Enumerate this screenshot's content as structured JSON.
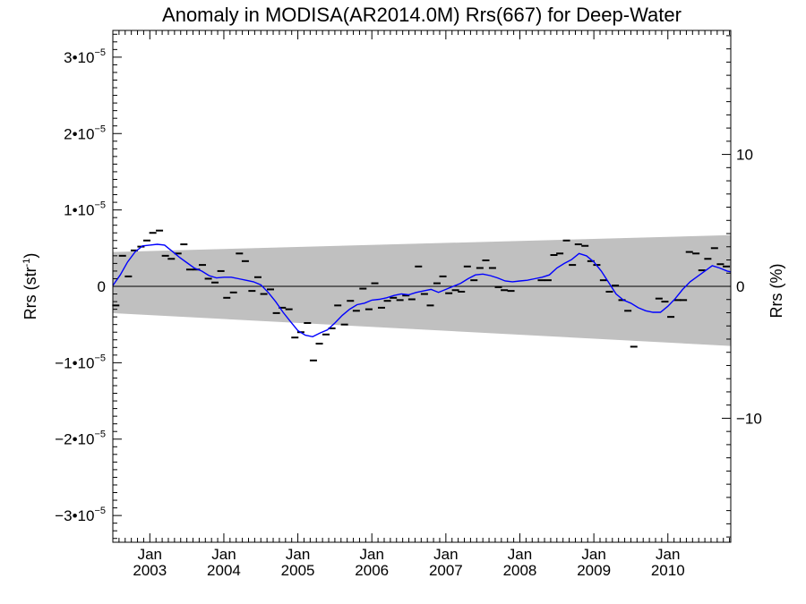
{
  "chart_data": {
    "type": "scatter",
    "title": "Anomaly in MODISA(AR2014.0M) Rrs(667) for Deep-Water",
    "ylabel_left": "Rrs (str",
    "ylabel_left_sup": "-1",
    "ylabel_left_close": ")",
    "ylabel_right": "Rrs (%)",
    "xlim": [
      2002.5,
      2010.85
    ],
    "ylim": [
      -3.35e-05,
      3.35e-05
    ],
    "ylim_right": [
      -19.4,
      19.4
    ],
    "y_ticks": [
      {
        "v": 3e-05,
        "m": "3•10",
        "e": "−5"
      },
      {
        "v": 2e-05,
        "m": "2•10",
        "e": "−5"
      },
      {
        "v": 1e-05,
        "m": "1•10",
        "e": "−5"
      },
      {
        "v": 0,
        "m": "0",
        "e": ""
      },
      {
        "v": -1e-05,
        "m": "−1•10",
        "e": "−5"
      },
      {
        "v": -2e-05,
        "m": "−2•10",
        "e": "−5"
      },
      {
        "v": -3e-05,
        "m": "−3•10",
        "e": "−5"
      }
    ],
    "y_right_ticks": [
      {
        "v": 10,
        "label": "10"
      },
      {
        "v": 0,
        "label": "0"
      },
      {
        "v": -10,
        "label": "−10"
      }
    ],
    "x_ticks": [
      {
        "v": 2003,
        "top": "Jan",
        "bottom": "2003"
      },
      {
        "v": 2004,
        "top": "Jan",
        "bottom": "2004"
      },
      {
        "v": 2005,
        "top": "Jan",
        "bottom": "2005"
      },
      {
        "v": 2006,
        "top": "Jan",
        "bottom": "2006"
      },
      {
        "v": 2007,
        "top": "Jan",
        "bottom": "2007"
      },
      {
        "v": 2008,
        "top": "Jan",
        "bottom": "2008"
      },
      {
        "v": 2009,
        "top": "Jan",
        "bottom": "2009"
      },
      {
        "v": 2010,
        "top": "Jan",
        "bottom": "2010"
      }
    ],
    "band": {
      "x": [
        2002.5,
        2010.85
      ],
      "upper": [
        4.5e-06,
        6.7e-06
      ],
      "lower": [
        -3.5e-06,
        -7.8e-06
      ],
      "color": "#c0c0c0"
    },
    "monthly_points": {
      "color": "#000000",
      "x": [
        2002.54,
        2002.63,
        2002.71,
        2002.79,
        2002.88,
        2002.96,
        2003.04,
        2003.13,
        2003.21,
        2003.29,
        2003.38,
        2003.46,
        2003.54,
        2003.63,
        2003.71,
        2003.79,
        2003.88,
        2003.96,
        2004.04,
        2004.13,
        2004.21,
        2004.29,
        2004.38,
        2004.46,
        2004.54,
        2004.63,
        2004.71,
        2004.79,
        2004.88,
        2004.96,
        2005.04,
        2005.13,
        2005.21,
        2005.29,
        2005.38,
        2005.46,
        2005.54,
        2005.63,
        2005.71,
        2005.79,
        2005.88,
        2005.96,
        2006.04,
        2006.13,
        2006.21,
        2006.29,
        2006.38,
        2006.46,
        2006.54,
        2006.63,
        2006.71,
        2006.79,
        2006.88,
        2006.96,
        2007.04,
        2007.13,
        2007.21,
        2007.29,
        2007.38,
        2007.46,
        2007.54,
        2007.63,
        2007.71,
        2007.79,
        2007.88,
        2008.29,
        2008.38,
        2008.46,
        2008.54,
        2008.63,
        2008.71,
        2008.79,
        2008.88,
        2008.96,
        2009.04,
        2009.13,
        2009.21,
        2009.29,
        2009.38,
        2009.46,
        2009.54,
        2009.88,
        2009.96,
        2010.04,
        2010.13,
        2010.21,
        2010.29,
        2010.38,
        2010.46,
        2010.54,
        2010.63,
        2010.71,
        2010.79
      ],
      "y": [
        -2.5e-06,
        4e-06,
        1.3e-06,
        4.7e-06,
        5.2e-06,
        6e-06,
        7e-06,
        7.3e-06,
        4e-06,
        3.6e-06,
        4.3e-06,
        5.5e-06,
        2.2e-06,
        2.2e-06,
        2.8e-06,
        1e-06,
        5e-07,
        2e-06,
        -1.5e-06,
        -8e-07,
        4.3e-06,
        3.3e-06,
        -6e-07,
        1.2e-06,
        -1e-06,
        -4e-07,
        -3.5e-06,
        -2.8e-06,
        -3e-06,
        -6.7e-06,
        -6e-06,
        -4.8e-06,
        -9.7e-06,
        -7.5e-06,
        -6.3e-06,
        -5.5e-06,
        -2.5e-06,
        -5e-06,
        -1.9e-06,
        -3.2e-06,
        -3e-07,
        -3e-06,
        4e-07,
        -2.8e-06,
        -1.9e-06,
        -1.5e-06,
        -1.8e-06,
        -1.2e-06,
        -1.7e-06,
        2.6e-06,
        -1e-06,
        -2.5e-06,
        4e-07,
        1.3e-06,
        -9e-07,
        -5e-07,
        -7e-07,
        2.6e-06,
        8e-07,
        2.4e-06,
        3.4e-06,
        2.4e-06,
        -1e-07,
        -5e-07,
        -6e-07,
        8e-07,
        8e-07,
        4.1e-06,
        4.3e-06,
        6e-06,
        2.8e-06,
        5.5e-06,
        5.3e-06,
        3.3e-06,
        2.8e-06,
        8e-07,
        -7e-07,
        1e-07,
        -1.8e-06,
        -3.2e-06,
        -7.9e-06,
        -1.6e-06,
        -2e-06,
        -4e-06,
        -1.8e-06,
        -1.8e-06,
        4.5e-06,
        4.3e-06,
        2.1e-06,
        3.6e-06,
        5e-06,
        2.9e-06,
        2.6e-06
      ]
    },
    "smoothed_line": {
      "color": "#0000ff",
      "x": [
        2002.5,
        2002.6,
        2002.7,
        2002.8,
        2002.9,
        2003.0,
        2003.1,
        2003.2,
        2003.3,
        2003.4,
        2003.5,
        2003.6,
        2003.7,
        2003.8,
        2003.9,
        2004.0,
        2004.1,
        2004.2,
        2004.3,
        2004.4,
        2004.5,
        2004.6,
        2004.7,
        2004.8,
        2004.9,
        2005.0,
        2005.1,
        2005.2,
        2005.3,
        2005.4,
        2005.5,
        2005.6,
        2005.7,
        2005.8,
        2005.9,
        2006.0,
        2006.1,
        2006.2,
        2006.3,
        2006.4,
        2006.5,
        2006.6,
        2006.7,
        2006.8,
        2006.9,
        2007.0,
        2007.1,
        2007.2,
        2007.3,
        2007.4,
        2007.5,
        2007.6,
        2007.7,
        2007.8,
        2007.9,
        2008.0,
        2008.1,
        2008.2,
        2008.3,
        2008.4,
        2008.5,
        2008.6,
        2008.7,
        2008.8,
        2008.9,
        2009.0,
        2009.1,
        2009.2,
        2009.3,
        2009.4,
        2009.5,
        2009.6,
        2009.7,
        2009.8,
        2009.9,
        2010.0,
        2010.1,
        2010.2,
        2010.3,
        2010.4,
        2010.5,
        2010.6,
        2010.7,
        2010.8,
        2010.85
      ],
      "y": [
        1e-07,
        1.5e-06,
        3.2e-06,
        4.5e-06,
        5.3e-06,
        5.4e-06,
        5.5e-06,
        5.4e-06,
        4.6e-06,
        3.8e-06,
        3.1e-06,
        2.4e-06,
        2e-06,
        1.4e-06,
        1.1e-06,
        1.2e-06,
        1.2e-06,
        1e-06,
        8e-07,
        6e-07,
        2e-07,
        -8e-07,
        -2e-06,
        -3.4e-06,
        -4.6e-06,
        -5.8e-06,
        -6.4e-06,
        -6.6e-06,
        -6.1e-06,
        -5.7e-06,
        -4.8e-06,
        -3.8e-06,
        -3e-06,
        -2.4e-06,
        -2.2e-06,
        -1.8e-06,
        -1.7e-06,
        -1.5e-06,
        -1.2e-06,
        -1e-06,
        -1.1e-06,
        -8e-07,
        -6e-07,
        -4e-07,
        -8e-07,
        -4e-07,
        0.0,
        4e-07,
        1e-06,
        1.5e-06,
        1.6e-06,
        1.4e-06,
        1.1e-06,
        7e-07,
        6e-07,
        7e-07,
        8e-07,
        1e-06,
        1.2e-06,
        1.5e-06,
        2.4e-06,
        3e-06,
        3.5e-06,
        4.3e-06,
        4e-06,
        3.2e-06,
        2e-06,
        5e-07,
        -1e-06,
        -1.8e-06,
        -2.2e-06,
        -2.8e-06,
        -3.2e-06,
        -3.4e-06,
        -3.4e-06,
        -2.6e-06,
        -1.6e-06,
        -4e-07,
        6e-07,
        1.3e-06,
        2e-06,
        2.7e-06,
        2.4e-06,
        2e-06,
        1.9e-06
      ]
    },
    "zero_line": true,
    "grid": false,
    "legend": "none"
  }
}
